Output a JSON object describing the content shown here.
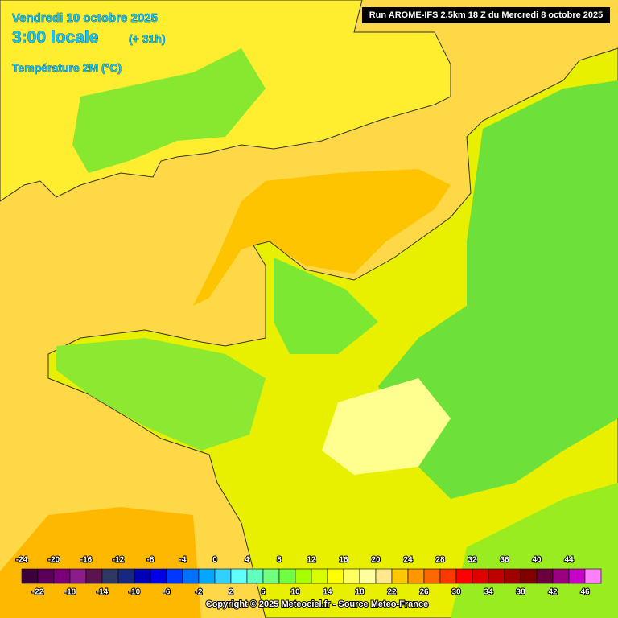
{
  "header": {
    "date": "Vendredi 10 octobre 2025",
    "time": "3:00 locale",
    "lead": "(+ 31h)",
    "parameter": "Température 2M (°C)",
    "run": "Run AROME-IFS 2.5km 18 Z du Mercredi 8 octobre 2025"
  },
  "legend": {
    "values": [
      -24,
      -22,
      -20,
      -18,
      -16,
      -14,
      -12,
      -10,
      -8,
      -6,
      -4,
      -2,
      0,
      2,
      4,
      6,
      8,
      10,
      12,
      14,
      16,
      18,
      20,
      22,
      24,
      26,
      28,
      30,
      32,
      34,
      36,
      38,
      40,
      42,
      44,
      46
    ],
    "colors": [
      "#3c003c",
      "#5a005a",
      "#7a007a",
      "#8c1c8c",
      "#5c1450",
      "#303868",
      "#182880",
      "#0000b4",
      "#0000e6",
      "#0038ff",
      "#0070ff",
      "#00a8ff",
      "#30d0ff",
      "#60ffff",
      "#60ffc0",
      "#70ff80",
      "#70ff40",
      "#a8ff00",
      "#d8ff00",
      "#ffff00",
      "#ffff60",
      "#ffffa0",
      "#ffe890",
      "#ffc800",
      "#ff9800",
      "#ff6800",
      "#ff3800",
      "#ff0000",
      "#e00000",
      "#c00000",
      "#a00000",
      "#800000",
      "#6a0040",
      "#9a0080",
      "#c800c8",
      "#ff80ff"
    ]
  },
  "footer": {
    "copyright": "Copyright © 2025 Meteociel.fr - Source Meteo-France"
  }
}
